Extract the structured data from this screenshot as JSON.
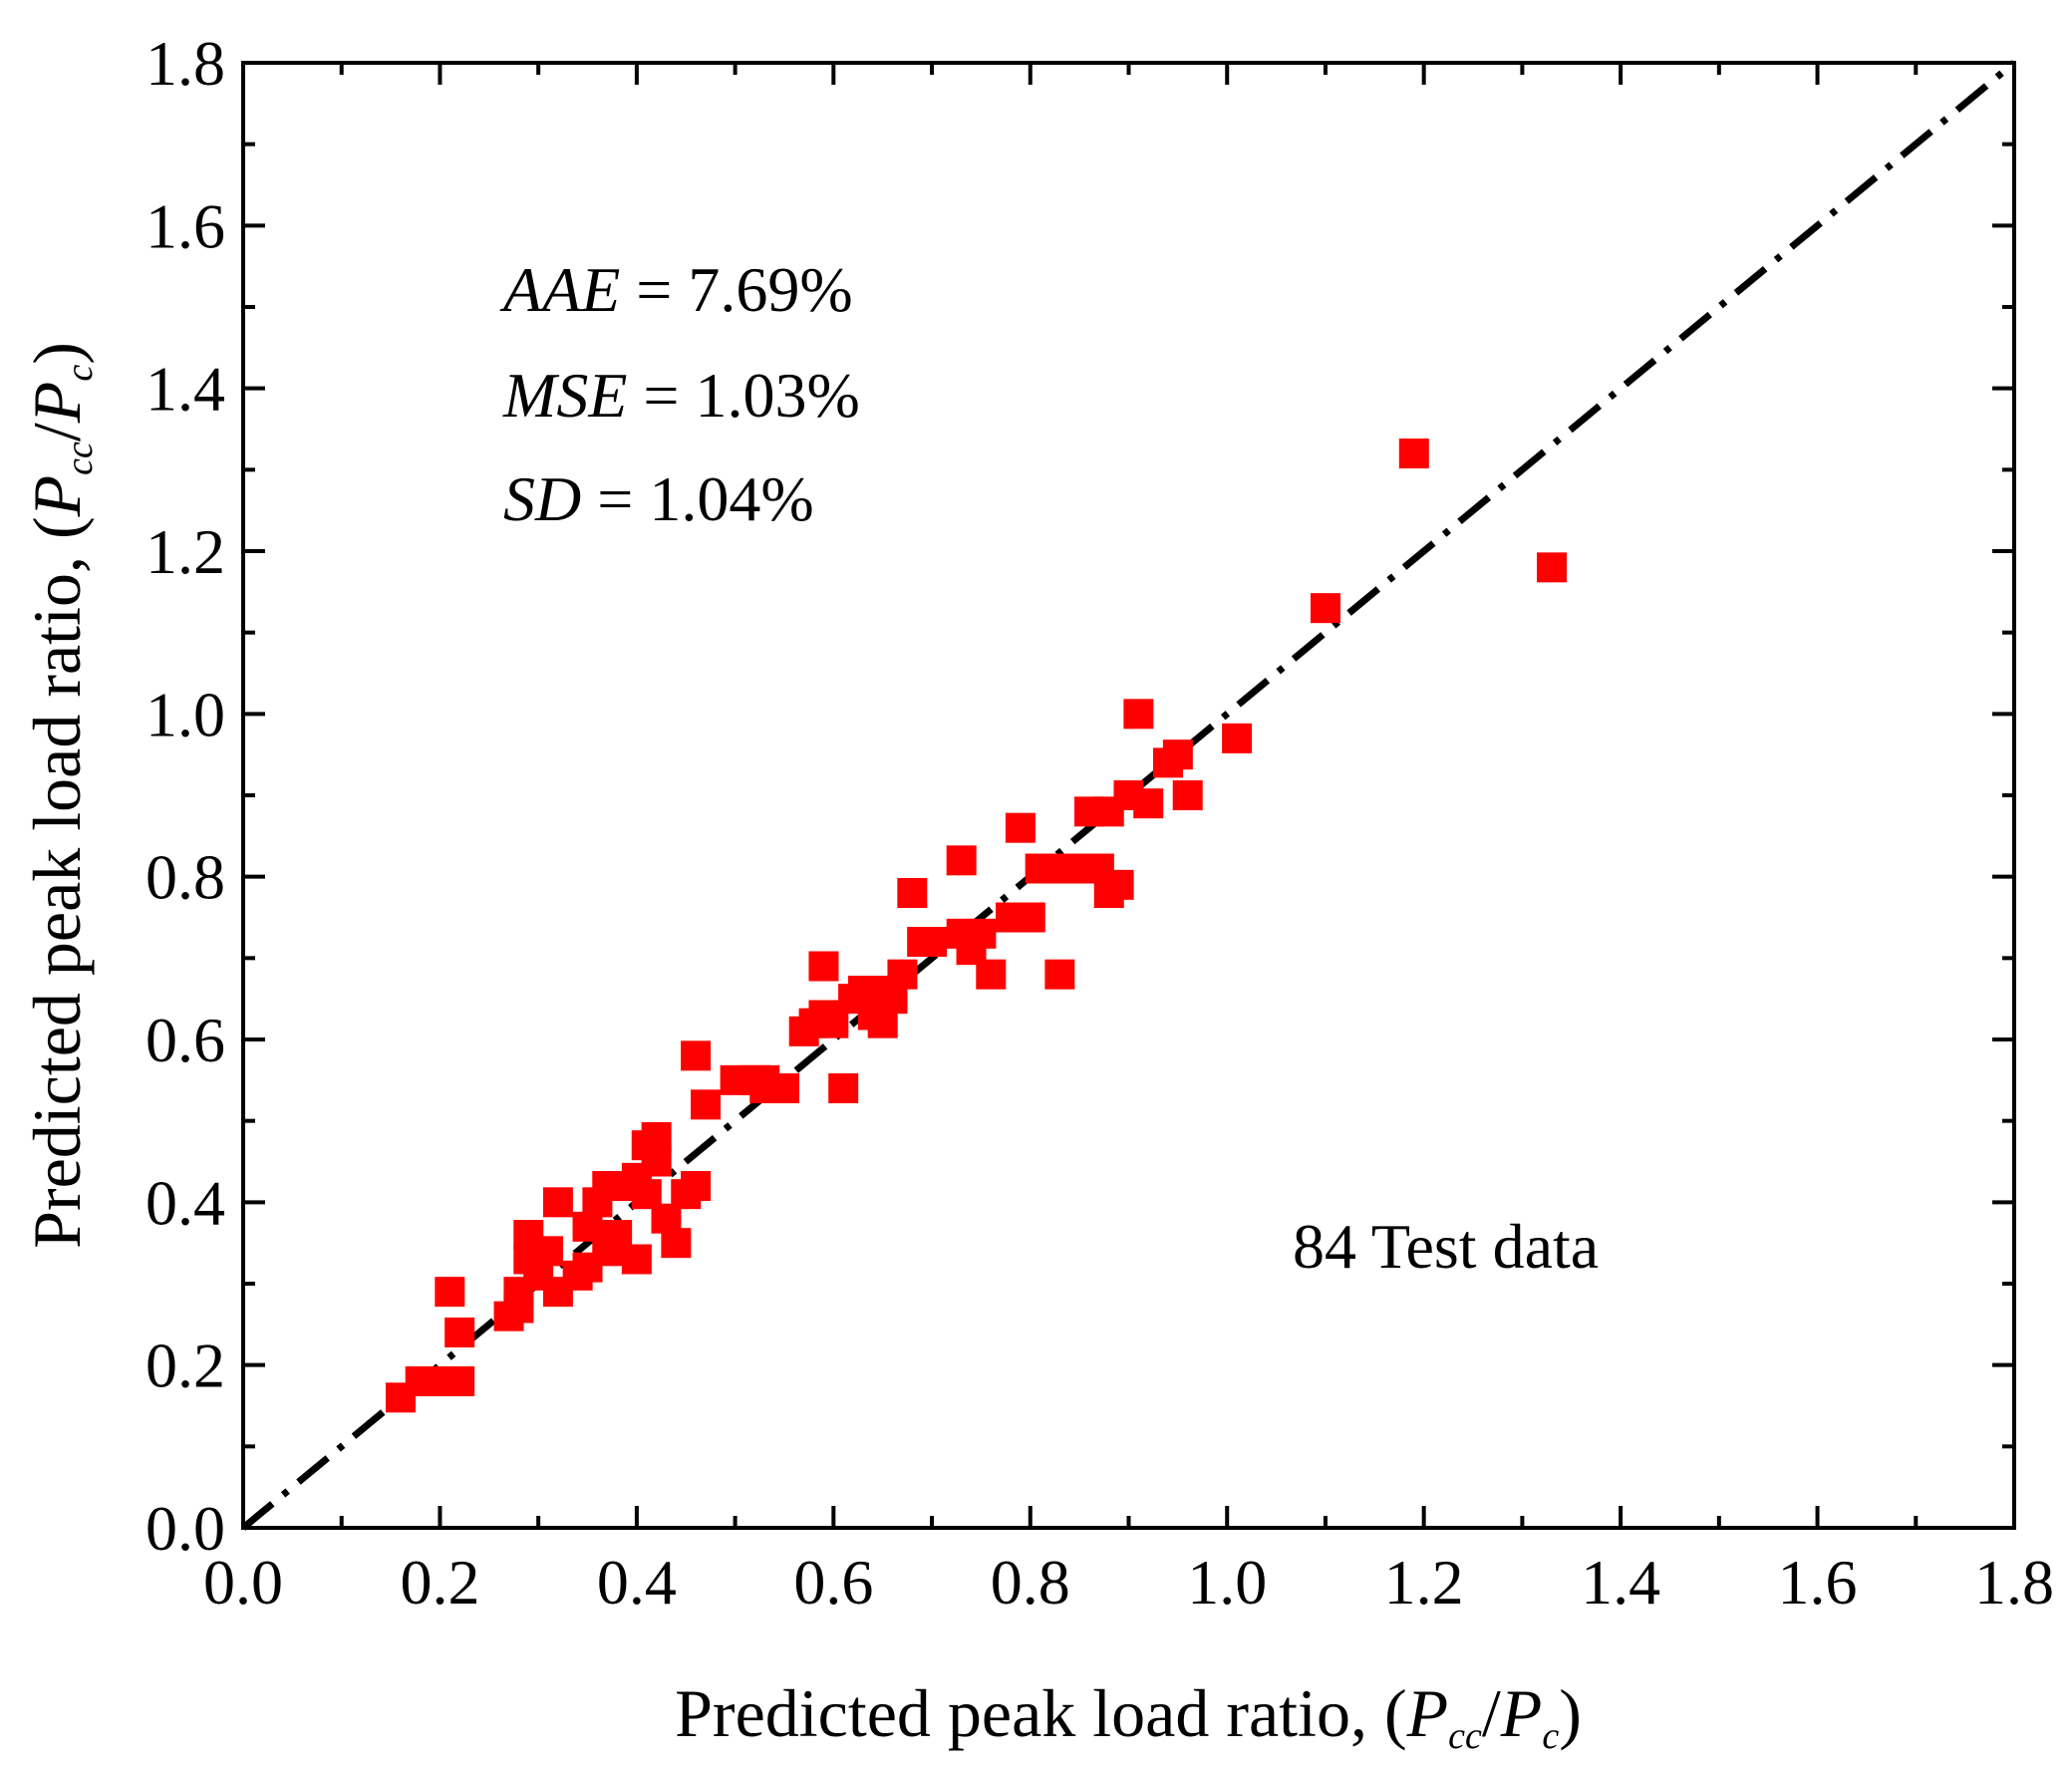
{
  "chart_data": {
    "type": "scatter",
    "xlabel": {
      "prefix": "Predicted peak load ratio, (",
      "p1": "P",
      "sub1": "cc",
      "slash": "/",
      "p2": "P",
      "sub2": "c",
      "suffix": ")"
    },
    "ylabel": {
      "prefix": "Predicted peak load ratio, (",
      "p1": "P",
      "sub1": "cc",
      "slash": "/",
      "p2": "P",
      "sub2": "c",
      "suffix": ")"
    },
    "xlim": [
      0.0,
      1.8
    ],
    "ylim": [
      0.0,
      1.8
    ],
    "xticks": [
      "0.0",
      "0.2",
      "0.4",
      "0.6",
      "0.8",
      "1.0",
      "1.2",
      "1.4",
      "1.6",
      "1.8"
    ],
    "yticks": [
      "0.0",
      "0.2",
      "0.4",
      "0.6",
      "0.8",
      "1.0",
      "1.2",
      "1.4",
      "1.6",
      "1.8"
    ],
    "reference_line": {
      "style": "dash-dot",
      "color": "#000000",
      "from": [
        0,
        0
      ],
      "to": [
        1.8,
        1.8
      ]
    },
    "stats": [
      {
        "name": "AAE",
        "eq": " = 7.69%"
      },
      {
        "name": "MSE",
        "eq": " = 1.03%"
      },
      {
        "name": "SD",
        "eq": " = 1.04%"
      }
    ],
    "annotation": "84 Test data",
    "marker_color": "#ff0000",
    "series": [
      {
        "name": "Test data",
        "points": [
          [
            0.16,
            0.16
          ],
          [
            0.18,
            0.18
          ],
          [
            0.21,
            0.18
          ],
          [
            0.22,
            0.18
          ],
          [
            0.21,
            0.29
          ],
          [
            0.22,
            0.24
          ],
          [
            0.27,
            0.26
          ],
          [
            0.28,
            0.27
          ],
          [
            0.28,
            0.29
          ],
          [
            0.29,
            0.33
          ],
          [
            0.29,
            0.36
          ],
          [
            0.31,
            0.34
          ],
          [
            0.32,
            0.29
          ],
          [
            0.32,
            0.4
          ],
          [
            0.34,
            0.31
          ],
          [
            0.35,
            0.32
          ],
          [
            0.35,
            0.37
          ],
          [
            0.36,
            0.4
          ],
          [
            0.37,
            0.34
          ],
          [
            0.37,
            0.42
          ],
          [
            0.38,
            0.36
          ],
          [
            0.39,
            0.42
          ],
          [
            0.4,
            0.33
          ],
          [
            0.4,
            0.43
          ],
          [
            0.41,
            0.47
          ],
          [
            0.42,
            0.45
          ],
          [
            0.42,
            0.48
          ],
          [
            0.43,
            0.38
          ],
          [
            0.44,
            0.35
          ],
          [
            0.45,
            0.41
          ],
          [
            0.46,
            0.42
          ],
          [
            0.46,
            0.58
          ],
          [
            0.47,
            0.52
          ],
          [
            0.5,
            0.55
          ],
          [
            0.52,
            0.55
          ],
          [
            0.53,
            0.55
          ],
          [
            0.55,
            0.54
          ],
          [
            0.57,
            0.61
          ],
          [
            0.58,
            0.62
          ],
          [
            0.59,
            0.69
          ],
          [
            0.59,
            0.63
          ],
          [
            0.6,
            0.62
          ],
          [
            0.61,
            0.54
          ],
          [
            0.63,
            0.66
          ],
          [
            0.64,
            0.63
          ],
          [
            0.65,
            0.62
          ],
          [
            0.65,
            0.66
          ],
          [
            0.66,
            0.65
          ],
          [
            0.67,
            0.68
          ],
          [
            0.68,
            0.78
          ],
          [
            0.69,
            0.72
          ],
          [
            0.7,
            0.72
          ],
          [
            0.73,
            0.82
          ],
          [
            0.73,
            0.73
          ],
          [
            0.74,
            0.71
          ],
          [
            0.76,
            0.68
          ],
          [
            0.78,
            0.75
          ],
          [
            0.79,
            0.86
          ],
          [
            0.8,
            0.75
          ],
          [
            0.81,
            0.81
          ],
          [
            0.82,
            0.81
          ],
          [
            0.83,
            0.68
          ],
          [
            0.84,
            0.81
          ],
          [
            0.86,
            0.88
          ],
          [
            0.86,
            0.81
          ],
          [
            0.87,
            0.81
          ],
          [
            0.88,
            0.78
          ],
          [
            0.88,
            0.88
          ],
          [
            0.89,
            0.79
          ],
          [
            0.9,
            0.9
          ],
          [
            0.91,
            1.0
          ],
          [
            0.92,
            0.89
          ],
          [
            0.94,
            0.94
          ],
          [
            0.95,
            0.95
          ],
          [
            0.96,
            0.9
          ],
          [
            1.01,
            0.97
          ],
          [
            1.1,
            1.13
          ],
          [
            1.19,
            1.32
          ],
          [
            1.33,
            1.18
          ],
          [
            0.3,
            0.31
          ],
          [
            0.41,
            0.41
          ],
          [
            0.53,
            0.54
          ],
          [
            0.62,
            0.65
          ],
          [
            0.75,
            0.73
          ]
        ]
      }
    ]
  }
}
